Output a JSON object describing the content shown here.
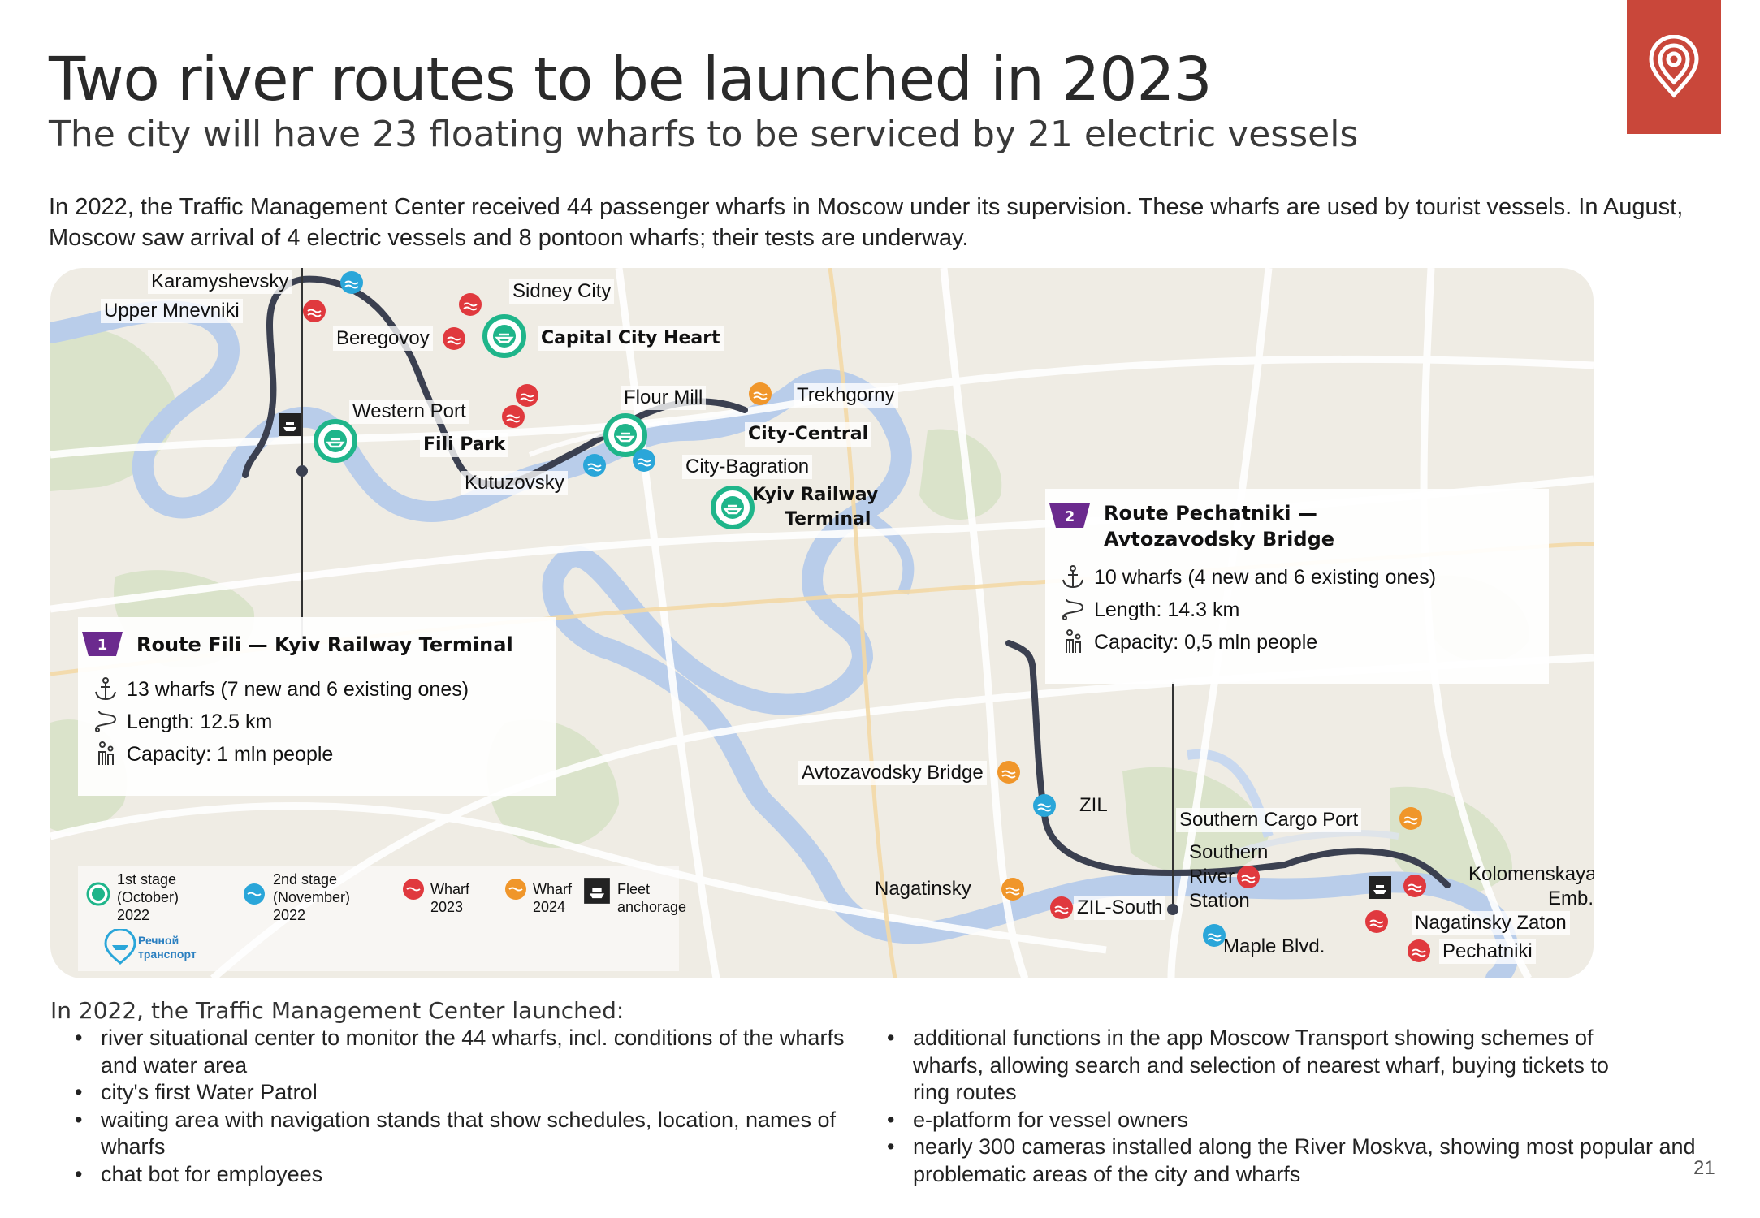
{
  "header": {
    "title": "Two river routes to be launched in 2023",
    "subtitle": "The city will have 23 floating wharfs to be serviced by 21 electric vessels",
    "intro": "In 2022, the Traffic Management Center received 44 passenger wharfs in Moscow under its supervision. These wharfs are used by tourist vessels. In August, Moscow saw arrival of 4 electric vessels and 8 pontoon wharfs; their tests are underway.",
    "logo_icon": "location-pin-icon",
    "accent_color": "#c9473a"
  },
  "map": {
    "colors": {
      "route": "#3b4050",
      "stage1": "#1fb58a",
      "stage2": "#2aa6d9",
      "wharf2023": "#e0393e",
      "wharf2024": "#f0962a",
      "river": "#b9cdea"
    },
    "wharfs": {
      "karamyshevsky": "Karamyshevsky",
      "upper_mnevniki": "Upper Mnevniki",
      "sidney_city": "Sidney City",
      "beregovoy": "Beregovoy",
      "capital_city_heart": "Capital City Heart",
      "flour_mill": "Flour Mill",
      "trekhgorny": "Trekhgorny",
      "western_port": "Western Port",
      "fili_park": "Fili Park",
      "city_central": "City-Central",
      "city_bagration": "City-Bagration",
      "kutuzovsky": "Kutuzovsky",
      "kyiv_railway_terminal_1": "Kyiv Railway",
      "kyiv_railway_terminal_2": "Terminal",
      "avtozavodsky_bridge": "Avtozavodsky Bridge",
      "zil": "ZIL",
      "southern_cargo_port": "Southern Cargo Port",
      "southern_river_station": "Southern River Station",
      "nagatinsky": "Nagatinsky",
      "zil_south": "ZIL-South",
      "maple_blvd": "Maple Blvd.",
      "kolomenskaya_1": "Kolomenskaya",
      "kolomenskaya_2": "Emb.",
      "nagatinsky_zaton": "Nagatinsky Zaton",
      "pechatniki": "Pechatniki"
    },
    "route1": {
      "number": "1",
      "name": "Route Fili — Kyiv Railway Terminal",
      "wharfs": "13 wharfs (7 new and 6 existing ones)",
      "length": "Length: 12.5 km",
      "capacity": "Capacity: 1 mln people"
    },
    "route2": {
      "number": "2",
      "name_line1": "Route Pechatniki —",
      "name_line2": "Avtozavodsky Bridge",
      "wharfs": "10 wharfs (4 new and 6 existing ones)",
      "length": "Length: 14.3 km",
      "capacity": "Capacity: 0,5 mln people"
    },
    "legend": {
      "stage1": [
        "1st stage",
        "(October)",
        "2022"
      ],
      "stage2": [
        "2nd stage",
        "(November)",
        "2022"
      ],
      "wharf2023": [
        "Wharf",
        "2023"
      ],
      "wharf2024": [
        "Wharf",
        "2024"
      ],
      "anchorage": [
        "Fleet",
        "anchorage"
      ],
      "brand": [
        "Речной",
        "транспорт"
      ]
    }
  },
  "bottom": {
    "section_title": "In 2022, the Traffic Management Center launched:",
    "left": [
      "river situational center to monitor the 44 wharfs, incl. conditions of the wharfs and water area",
      "city's first Water Patrol",
      "waiting area with navigation stands that show schedules, location, names of wharfs",
      "chat bot for employees"
    ],
    "right": [
      "additional functions in the app Moscow Transport showing schemes of wharfs, allowing search and selection of nearest wharf, buying tickets to ring routes",
      "e-platform for vessel owners",
      "nearly 300 cameras installed along the River Moskva, showing most popular and problematic areas of the city and wharfs"
    ]
  },
  "page_number": "21"
}
